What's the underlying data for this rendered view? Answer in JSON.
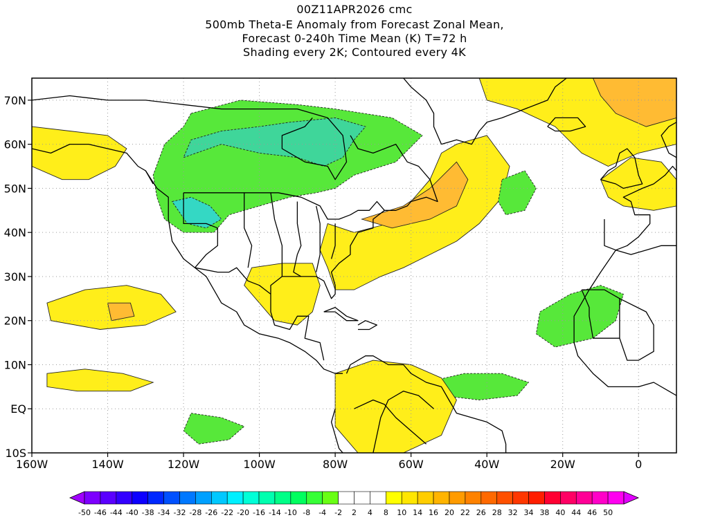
{
  "title": {
    "line1": "00Z11APR2026 cmc",
    "line2": "500mb Theta-E Anomaly from Forecast Zonal Mean,",
    "line3": "Forecast 0-240h Time Mean (K) T=72 h",
    "line4": "Shading every 2K; Contoured every 4K"
  },
  "map": {
    "lon_range": [
      -160,
      10
    ],
    "lat_range": [
      -10,
      75
    ],
    "x_ticks": [
      {
        "lon": -160,
        "label": "160W"
      },
      {
        "lon": -140,
        "label": "140W"
      },
      {
        "lon": -120,
        "label": "120W"
      },
      {
        "lon": -100,
        "label": "100W"
      },
      {
        "lon": -80,
        "label": "80W"
      },
      {
        "lon": -60,
        "label": "60W"
      },
      {
        "lon": -40,
        "label": "40W"
      },
      {
        "lon": -20,
        "label": "20W"
      },
      {
        "lon": 0,
        "label": "0"
      }
    ],
    "y_ticks": [
      {
        "lat": 70,
        "label": "70N"
      },
      {
        "lat": 60,
        "label": "60N"
      },
      {
        "lat": 50,
        "label": "50N"
      },
      {
        "lat": 40,
        "label": "40N"
      },
      {
        "lat": 30,
        "label": "30N"
      },
      {
        "lat": 20,
        "label": "20N"
      },
      {
        "lat": 10,
        "label": "10N"
      },
      {
        "lat": 0,
        "label": "EQ"
      },
      {
        "lat": -10,
        "label": "10S"
      }
    ],
    "grid": true
  },
  "colorbar": {
    "labels": [
      "-50",
      "-46",
      "-44",
      "-40",
      "-38",
      "-34",
      "-32",
      "-28",
      "-26",
      "-22",
      "-20",
      "-16",
      "-14",
      "-10",
      "-8",
      "-4",
      "-2",
      "2",
      "4",
      "8",
      "10",
      "14",
      "16",
      "20",
      "22",
      "26",
      "28",
      "32",
      "34",
      "38",
      "40",
      "44",
      "46",
      "50"
    ],
    "colors": [
      "#a000ff",
      "#7d00ff",
      "#5a00ff",
      "#3300ff",
      "#0c00ff",
      "#0028ff",
      "#0050ff",
      "#0078ff",
      "#00a0ff",
      "#00c8ff",
      "#00f0ff",
      "#00ffd7",
      "#00ffaf",
      "#00ff87",
      "#00ff5f",
      "#37ff37",
      "#69ff14",
      "#ffffff",
      "#ffffff",
      "#ffffff",
      "#ffff00",
      "#ffe600",
      "#ffcd00",
      "#ffb400",
      "#ff9b00",
      "#ff8200",
      "#ff6900",
      "#ff5000",
      "#ff3700",
      "#ff1e00",
      "#ff0032",
      "#ff0064",
      "#ff0096",
      "#ff00c8",
      "#ff00f0",
      "#e100ff"
    ]
  },
  "anomaly_areas": [
    {
      "name": "canada-negative",
      "color": "#57e83a",
      "points": [
        [
          -118,
          67
        ],
        [
          -105,
          70
        ],
        [
          -90,
          69
        ],
        [
          -80,
          68
        ],
        [
          -65,
          66
        ],
        [
          -57,
          62
        ],
        [
          -64,
          56
        ],
        [
          -75,
          53
        ],
        [
          -80,
          50
        ],
        [
          -85,
          49
        ],
        [
          -92,
          48
        ],
        [
          -100,
          46
        ],
        [
          -108,
          44
        ],
        [
          -112,
          40
        ],
        [
          -120,
          40
        ],
        [
          -125,
          43
        ],
        [
          -127,
          48
        ],
        [
          -128,
          53
        ],
        [
          -125,
          60
        ],
        [
          -120,
          64
        ]
      ]
    },
    {
      "name": "canada-deeper",
      "color": "#3fd69a",
      "points": [
        [
          -120,
          57
        ],
        [
          -110,
          60
        ],
        [
          -100,
          58
        ],
        [
          -90,
          57
        ],
        [
          -83,
          55
        ],
        [
          -78,
          57
        ],
        [
          -75,
          61
        ],
        [
          -72,
          64
        ],
        [
          -80,
          66
        ],
        [
          -92,
          65
        ],
        [
          -100,
          64
        ],
        [
          -110,
          63
        ],
        [
          -118,
          61
        ]
      ]
    },
    {
      "name": "rockies-core",
      "color": "#34d8c4",
      "points": [
        [
          -123,
          47
        ],
        [
          -118,
          48
        ],
        [
          -113,
          46
        ],
        [
          -110,
          43
        ],
        [
          -114,
          41
        ],
        [
          -119,
          42
        ]
      ]
    },
    {
      "name": "atlantic-positive",
      "color": "#ffee1a",
      "points": [
        [
          -82,
          42
        ],
        [
          -75,
          40
        ],
        [
          -66,
          42
        ],
        [
          -60,
          47
        ],
        [
          -55,
          52
        ],
        [
          -52,
          58
        ],
        [
          -48,
          60
        ],
        [
          -40,
          62
        ],
        [
          -34,
          55
        ],
        [
          -36,
          48
        ],
        [
          -42,
          42
        ],
        [
          -48,
          38
        ],
        [
          -55,
          35
        ],
        [
          -62,
          32
        ],
        [
          -68,
          30
        ],
        [
          -75,
          27
        ],
        [
          -80,
          27
        ],
        [
          -82,
          32
        ],
        [
          -84,
          36
        ]
      ]
    },
    {
      "name": "atlantic-orange",
      "color": "#ffbb33",
      "points": [
        [
          -73,
          43
        ],
        [
          -62,
          46
        ],
        [
          -55,
          50
        ],
        [
          -48,
          56
        ],
        [
          -45,
          52
        ],
        [
          -48,
          46
        ],
        [
          -55,
          43
        ],
        [
          -65,
          41
        ]
      ]
    },
    {
      "name": "northeast-positive",
      "color": "#ffee1a",
      "points": [
        [
          -42,
          75
        ],
        [
          -20,
          75
        ],
        [
          10,
          75
        ],
        [
          10,
          60
        ],
        [
          0,
          58
        ],
        [
          -8,
          55
        ],
        [
          -15,
          58
        ],
        [
          -22,
          64
        ],
        [
          -32,
          68
        ],
        [
          -40,
          70
        ]
      ]
    },
    {
      "name": "northeast-orange",
      "color": "#ffbb33",
      "points": [
        [
          -12,
          75
        ],
        [
          10,
          75
        ],
        [
          10,
          66
        ],
        [
          2,
          64
        ],
        [
          -6,
          67
        ],
        [
          -10,
          71
        ]
      ]
    },
    {
      "name": "europe-positive",
      "color": "#ffee1a",
      "points": [
        [
          -10,
          52
        ],
        [
          -2,
          57
        ],
        [
          6,
          56
        ],
        [
          10,
          52
        ],
        [
          10,
          46
        ],
        [
          4,
          45
        ],
        [
          -4,
          46
        ],
        [
          -8,
          48
        ]
      ]
    },
    {
      "name": "alaska-positive",
      "color": "#ffee1a",
      "points": [
        [
          -160,
          64
        ],
        [
          -150,
          63
        ],
        [
          -140,
          62
        ],
        [
          -135,
          59
        ],
        [
          -138,
          55
        ],
        [
          -145,
          52
        ],
        [
          -152,
          52
        ],
        [
          -160,
          55
        ]
      ]
    },
    {
      "name": "pacific-positive",
      "color": "#ffee1a",
      "points": [
        [
          -156,
          24
        ],
        [
          -146,
          27
        ],
        [
          -135,
          28
        ],
        [
          -126,
          26
        ],
        [
          -122,
          22
        ],
        [
          -130,
          19
        ],
        [
          -142,
          18
        ],
        [
          -155,
          20
        ]
      ]
    },
    {
      "name": "pacific-core",
      "color": "#ffbb33",
      "points": [
        [
          -140,
          24
        ],
        [
          -134,
          24
        ],
        [
          -133,
          21
        ],
        [
          -139,
          20
        ]
      ]
    },
    {
      "name": "mexico-positive",
      "color": "#ffee1a",
      "points": [
        [
          -102,
          32
        ],
        [
          -94,
          33
        ],
        [
          -86,
          33
        ],
        [
          -84,
          28
        ],
        [
          -86,
          22
        ],
        [
          -90,
          19
        ],
        [
          -96,
          20
        ],
        [
          -100,
          24
        ],
        [
          -104,
          28
        ]
      ]
    },
    {
      "name": "mideast-atlantic-neg",
      "color": "#57e83a",
      "points": [
        [
          -26,
          22
        ],
        [
          -18,
          26
        ],
        [
          -10,
          28
        ],
        [
          -4,
          26
        ],
        [
          -6,
          20
        ],
        [
          -12,
          16
        ],
        [
          -22,
          14
        ],
        [
          -27,
          17
        ]
      ]
    },
    {
      "name": "central-atlantic-neg",
      "color": "#57e83a",
      "points": [
        [
          -56,
          6
        ],
        [
          -46,
          8
        ],
        [
          -36,
          8
        ],
        [
          -29,
          6
        ],
        [
          -32,
          3
        ],
        [
          -42,
          2
        ],
        [
          -52,
          3
        ]
      ]
    },
    {
      "name": "midatlantic-neg",
      "color": "#57e83a",
      "points": [
        [
          -36,
          52
        ],
        [
          -30,
          54
        ],
        [
          -27,
          50
        ],
        [
          -30,
          45
        ],
        [
          -35,
          44
        ],
        [
          -37,
          47
        ]
      ]
    },
    {
      "name": "south-america-pos",
      "color": "#ffee1a",
      "points": [
        [
          -80,
          8
        ],
        [
          -70,
          11
        ],
        [
          -60,
          10
        ],
        [
          -52,
          7
        ],
        [
          -48,
          2
        ],
        [
          -52,
          -6
        ],
        [
          -62,
          -10
        ],
        [
          -74,
          -10
        ],
        [
          -80,
          -4
        ]
      ]
    },
    {
      "name": "equatorial-pacific-pos",
      "color": "#ffee1a",
      "points": [
        [
          -156,
          8
        ],
        [
          -146,
          9
        ],
        [
          -136,
          8
        ],
        [
          -128,
          6
        ],
        [
          -134,
          4
        ],
        [
          -148,
          4
        ],
        [
          -156,
          5
        ]
      ]
    },
    {
      "name": "central-america-neg",
      "color": "#57e83a",
      "points": [
        [
          -118,
          -1
        ],
        [
          -110,
          -2
        ],
        [
          -104,
          -4
        ],
        [
          -108,
          -7
        ],
        [
          -116,
          -8
        ],
        [
          -120,
          -5
        ]
      ]
    }
  ]
}
